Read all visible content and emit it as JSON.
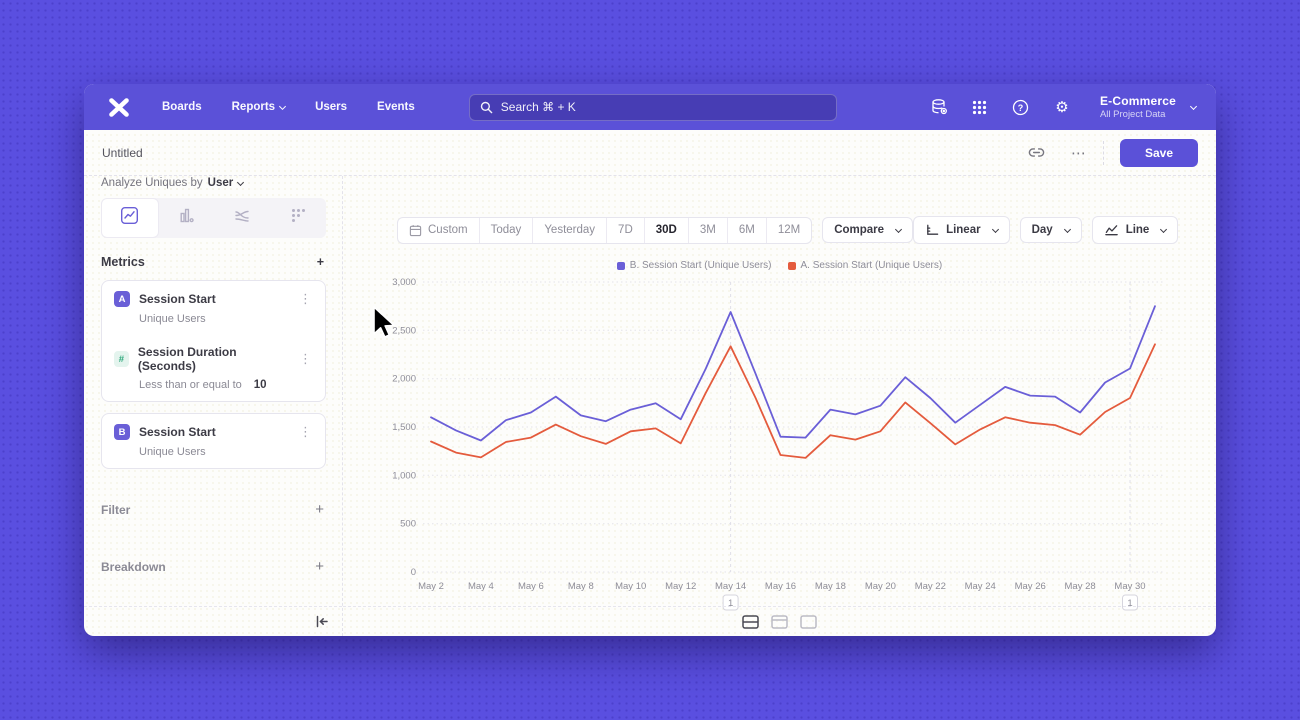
{
  "colors": {
    "accent": "#5b51d8",
    "line_b": "#6a5fd7",
    "line_a": "#e45b3d",
    "green": "#2ea87c"
  },
  "icons": {
    "gear": "⚙",
    "ellipsis": "⋯",
    "kebab": "⋮",
    "plus": "+"
  },
  "nav": {
    "items": [
      {
        "label": "Boards"
      },
      {
        "label": "Reports"
      },
      {
        "label": "Users"
      },
      {
        "label": "Events"
      }
    ],
    "search": {
      "placeholder": "Search  ⌘ + K"
    },
    "project": {
      "name": "E-Commerce",
      "scope": "All Project Data"
    }
  },
  "header": {
    "title": "Untitled",
    "save_label": "Save"
  },
  "sidebar": {
    "analyze_label": "Analyze Uniques by",
    "analyze_value": "User",
    "metrics_title": "Metrics",
    "groups": [
      {
        "rows": [
          {
            "badge": "A",
            "title": "Session Start",
            "subtitle": "Unique Users"
          },
          {
            "badge": "#",
            "title": "Session Duration (Seconds)",
            "subtitle": "Less than or equal to",
            "subtitle_value": "10"
          }
        ]
      },
      {
        "rows": [
          {
            "badge": "B",
            "title": "Session Start",
            "subtitle": "Unique Users"
          }
        ]
      }
    ],
    "filter_label": "Filter",
    "breakdown_label": "Breakdown"
  },
  "toolbar": {
    "ranges": [
      "Custom",
      "Today",
      "Yesterday",
      "7D",
      "30D",
      "3M",
      "6M",
      "12M"
    ],
    "active_range": "30D",
    "compare": "Compare",
    "scale": "Linear",
    "interval": "Day",
    "chart_type": "Line"
  },
  "chart_data": {
    "type": "line",
    "x": [
      "May 2",
      "May 3",
      "May 4",
      "May 5",
      "May 6",
      "May 7",
      "May 8",
      "May 9",
      "May 10",
      "May 11",
      "May 12",
      "May 13",
      "May 14",
      "May 15",
      "May 16",
      "May 17",
      "May 18",
      "May 19",
      "May 20",
      "May 21",
      "May 22",
      "May 23",
      "May 24",
      "May 25",
      "May 26",
      "May 27",
      "May 28",
      "May 29",
      "May 30",
      "May 31"
    ],
    "x_tick_labels": [
      "May 2",
      "May 4",
      "May 6",
      "May 8",
      "May 10",
      "May 12",
      "May 14",
      "May 16",
      "May 18",
      "May 20",
      "May 22",
      "May 24",
      "May 26",
      "May 28",
      "May 30"
    ],
    "series": [
      {
        "name": "B. Session Start (Unique Users)",
        "color": "#6a5fd7",
        "values": [
          1600,
          1465,
          1360,
          1570,
          1650,
          1815,
          1620,
          1560,
          1680,
          1745,
          1580,
          2100,
          2690,
          2050,
          1400,
          1390,
          1680,
          1630,
          1720,
          2015,
          1800,
          1545,
          1730,
          1915,
          1825,
          1815,
          1650,
          1960,
          2105,
          2750
        ]
      },
      {
        "name": "A. Session Start (Unique Users)",
        "color": "#e45b3d",
        "values": [
          1350,
          1235,
          1185,
          1345,
          1390,
          1525,
          1405,
          1325,
          1455,
          1485,
          1330,
          1850,
          2335,
          1800,
          1210,
          1180,
          1415,
          1370,
          1455,
          1755,
          1540,
          1320,
          1475,
          1600,
          1545,
          1520,
          1420,
          1655,
          1800,
          2355
        ]
      }
    ],
    "ylim": [
      0,
      3000
    ],
    "yticks": [
      0,
      500,
      1000,
      1500,
      2000,
      2500,
      3000
    ],
    "ytick_labels": [
      "0",
      "500",
      "1,000",
      "1,500",
      "2,000",
      "2,500",
      "3,000"
    ],
    "grid": "horizontal-dotted",
    "legend_position": "top-center",
    "annotations": [
      {
        "index": 12,
        "x": "May 14",
        "label": "1"
      },
      {
        "index": 28,
        "x": "May 30",
        "label": "1"
      }
    ]
  }
}
